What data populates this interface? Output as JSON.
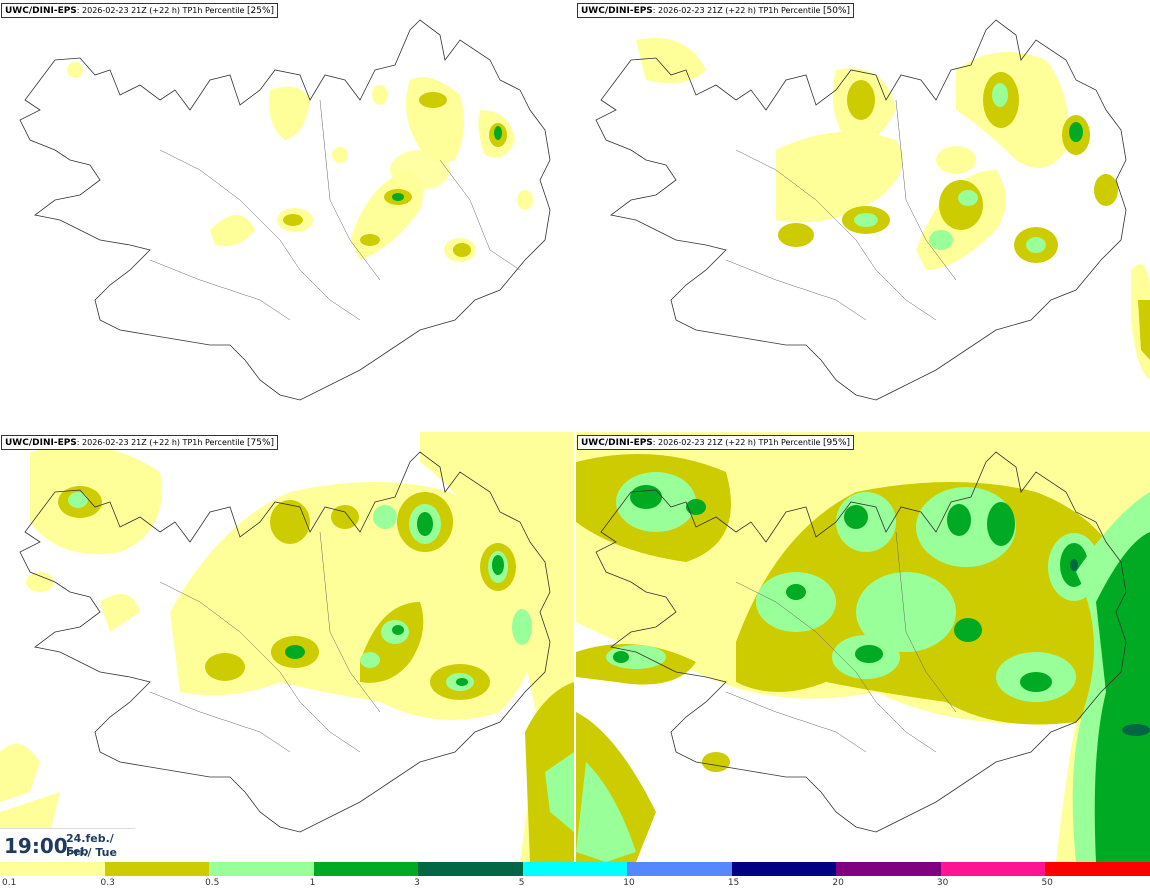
{
  "panels": [
    {
      "model": "UWC/DINI-EPS",
      "run": ": 2026-02-23 21Z (+22 h) TP1h Percentile ",
      "pct": "[25%]"
    },
    {
      "model": "UWC/DINI-EPS",
      "run": ": 2026-02-23 21Z (+22 h) TP1h Percentile ",
      "pct": "[50%]"
    },
    {
      "model": "UWC/DINI-EPS",
      "run": ": 2026-02-23 21Z (+22 h) TP1h Percentile ",
      "pct": "[75%]"
    },
    {
      "model": "UWC/DINI-EPS",
      "run": ": 2026-02-23 21Z (+22 h) TP1h Percentile ",
      "pct": "[95%]"
    }
  ],
  "time": {
    "clock": "19:00",
    "date_line1": "24.feb./ Feb",
    "date_line2": "Þri./ Tue"
  },
  "legend": {
    "colors": [
      "#ffff99",
      "#cccc00",
      "#99ff99",
      "#00aa22",
      "#006644",
      "#00ffff",
      "#5588ff",
      "#000080",
      "#800080",
      "#ff1493",
      "#ff0000"
    ],
    "labels": [
      "0.1",
      "0.3",
      "0.5",
      "1",
      "3",
      "5",
      "10",
      "15",
      "20",
      "30",
      "50"
    ]
  }
}
